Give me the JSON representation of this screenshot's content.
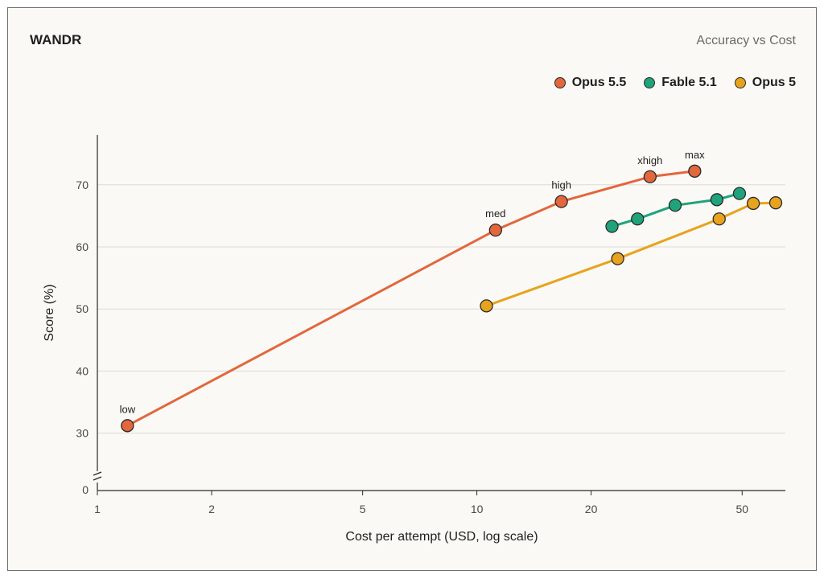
{
  "chart_data": {
    "type": "line",
    "title": "WANDR",
    "subtitle": "Accuracy vs Cost",
    "xlabel": "Cost per attempt (USD, log scale)",
    "ylabel": "Score (%)",
    "x_scale": "log",
    "xlim": [
      1,
      65
    ],
    "ylim": [
      30,
      78
    ],
    "y_axis_break": true,
    "x_ticks": [
      1,
      2,
      5,
      10,
      20,
      50
    ],
    "x_tick_labels": [
      "1",
      "2",
      "5",
      "10",
      "20",
      "50"
    ],
    "y_ticks": [
      0,
      30,
      40,
      50,
      60,
      70
    ],
    "y_tick_labels": [
      "0",
      "30",
      "40",
      "50",
      "60",
      "70"
    ],
    "grid": "horizontal",
    "legend_position": "top-right",
    "series": [
      {
        "name": "Opus 5.5",
        "color": "#e2673c",
        "points": [
          {
            "x": 1.2,
            "y": 31.2,
            "label": "low"
          },
          {
            "x": 11.2,
            "y": 62.7,
            "label": "med"
          },
          {
            "x": 16.7,
            "y": 67.3,
            "label": "high"
          },
          {
            "x": 28.6,
            "y": 71.3,
            "label": "xhigh"
          },
          {
            "x": 37.5,
            "y": 72.2,
            "label": "max"
          }
        ]
      },
      {
        "name": "Fable 5.1",
        "color": "#1fa37a",
        "points": [
          {
            "x": 22.7,
            "y": 63.3
          },
          {
            "x": 26.5,
            "y": 64.5
          },
          {
            "x": 33.3,
            "y": 66.7
          },
          {
            "x": 42.9,
            "y": 67.6
          },
          {
            "x": 49.2,
            "y": 68.6
          }
        ]
      },
      {
        "name": "Opus 5",
        "color": "#e8a31e",
        "points": [
          {
            "x": 10.6,
            "y": 50.5
          },
          {
            "x": 23.5,
            "y": 58.1
          },
          {
            "x": 43.5,
            "y": 64.5
          },
          {
            "x": 53.5,
            "y": 67.0
          },
          {
            "x": 61.3,
            "y": 67.1
          }
        ]
      }
    ]
  }
}
